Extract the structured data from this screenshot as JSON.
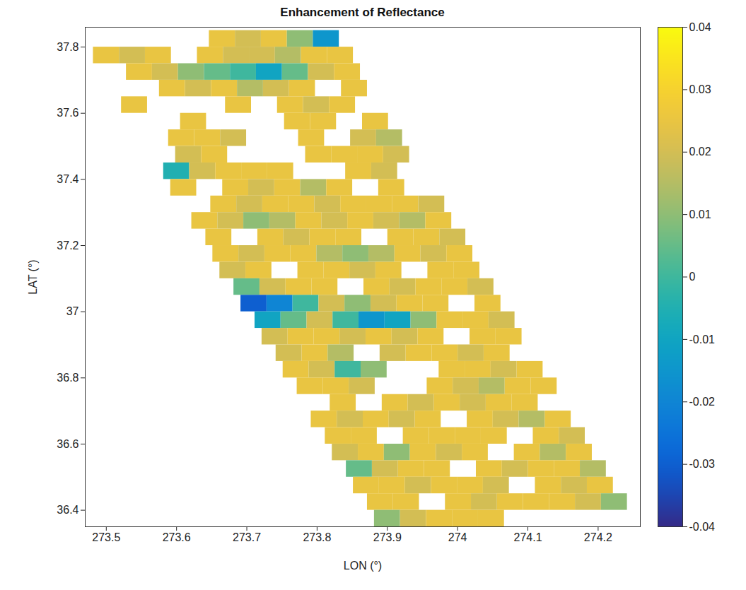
{
  "chart_data": {
    "type": "heatmap",
    "title": "Enhancement of Reflectance",
    "x_label": "LON (°)",
    "y_label": "LAT (°)",
    "xlim": [
      273.47,
      274.26
    ],
    "ylim": [
      36.35,
      37.86
    ],
    "xticks": [
      273.5,
      273.6,
      273.7,
      273.8,
      273.9,
      274,
      274.1,
      274.2
    ],
    "yticks": [
      36.4,
      36.6,
      36.8,
      37,
      37.2,
      37.4,
      37.6,
      37.8
    ],
    "cells": {
      "lat_step": 0.05,
      "lon_step": 0.037,
      "lat": [
        37.825,
        37.775,
        37.725,
        37.675,
        37.625,
        37.575,
        37.525,
        37.475,
        37.425,
        37.375,
        37.325,
        37.275,
        37.225,
        37.175,
        37.125,
        37.075,
        37.025,
        36.975,
        36.925,
        36.875,
        36.825,
        36.775,
        36.725,
        36.675,
        36.625,
        36.575,
        36.525,
        36.475,
        36.425,
        36.375
      ],
      "lon_start": [
        273.48,
        273.5,
        273.51,
        273.52,
        273.54,
        273.55,
        273.57,
        273.58,
        273.6,
        273.61,
        273.63,
        273.64,
        273.66,
        273.67,
        273.68,
        273.7,
        273.71,
        273.73,
        273.74,
        273.76,
        273.77,
        273.79,
        273.8,
        273.81,
        273.83,
        273.84,
        273.86,
        273.87,
        273.89,
        273.9
      ],
      "values": [
        [
          null,
          null,
          null,
          null,
          null,
          0.025,
          0.02,
          0.025,
          0.01,
          -0.015
        ],
        [
          0.025,
          0.02,
          0.025,
          null,
          0.025,
          0.02,
          0.02,
          0.015,
          0.025,
          0.025
        ],
        [
          null,
          0.025,
          0.02,
          0.01,
          0.005,
          0,
          -0.01,
          0.005,
          0.02,
          0.025
        ],
        [
          null,
          null,
          0.025,
          0.02,
          0.025,
          0.015,
          0.02,
          0.025,
          null,
          0.025
        ],
        [
          0.025,
          null,
          null,
          null,
          0.025,
          null,
          0.025,
          0.02,
          0.025,
          null
        ],
        [
          null,
          null,
          0.025,
          null,
          null,
          null,
          0.025,
          0.025,
          null,
          0.025
        ],
        [
          null,
          0.025,
          0.025,
          0.02,
          null,
          null,
          0.025,
          null,
          0.02,
          0.015
        ],
        [
          null,
          0.02,
          0.025,
          null,
          null,
          null,
          0.025,
          0.025,
          0.025,
          0.02
        ],
        [
          -0.005,
          0.02,
          0.025,
          0.025,
          0.025,
          null,
          null,
          0.025,
          0.02,
          null
        ],
        [
          0.025,
          null,
          0.025,
          0.02,
          0.025,
          0.015,
          0.025,
          null,
          0.025,
          null
        ],
        [
          null,
          0.025,
          0.02,
          0.025,
          0.025,
          0.02,
          0.025,
          0.025,
          0.025,
          0.02
        ],
        [
          0.025,
          0.02,
          0.01,
          0.015,
          0.025,
          0.02,
          0.025,
          0.02,
          0.015,
          0.025
        ],
        [
          0.025,
          null,
          0.025,
          0.02,
          0.025,
          0.025,
          null,
          0.025,
          0.025,
          0.02
        ],
        [
          0.025,
          0.02,
          0.025,
          0.025,
          0.015,
          0.01,
          0.015,
          0.025,
          0.02,
          0.025
        ],
        [
          0.02,
          0.025,
          null,
          0.025,
          0.025,
          0.02,
          0.025,
          null,
          0.025,
          0.025
        ],
        [
          0.005,
          0.02,
          0.025,
          0.025,
          null,
          0.025,
          0.02,
          0.025,
          0.025,
          0.02
        ],
        [
          -0.03,
          -0.02,
          0,
          0.02,
          0.01,
          0.02,
          0.025,
          0.025,
          null,
          0.025
        ],
        [
          -0.01,
          0.005,
          0.02,
          0,
          -0.015,
          -0.01,
          0.01,
          0.025,
          0.025,
          0.02
        ],
        [
          0.02,
          0.025,
          0.025,
          0.02,
          0.025,
          0.02,
          0.025,
          null,
          0.025,
          0.025
        ],
        [
          0.02,
          0.025,
          0.015,
          null,
          0.02,
          0.025,
          0.025,
          0.02,
          0.025,
          null
        ],
        [
          0.025,
          0.02,
          0,
          0.01,
          null,
          null,
          0.025,
          0.025,
          0.02,
          0.025
        ],
        [
          0.025,
          0.025,
          0.02,
          null,
          null,
          0.025,
          0.02,
          0.015,
          0.025,
          0.025
        ],
        [
          null,
          0.025,
          null,
          0.025,
          0.02,
          0.025,
          0.02,
          0.025,
          0.025,
          null
        ],
        [
          0.025,
          0.02,
          0.025,
          0.02,
          0.025,
          null,
          0.025,
          0.02,
          0.015,
          0.025
        ],
        [
          0.025,
          0.025,
          null,
          0.025,
          0.025,
          0.025,
          0.025,
          null,
          0.025,
          0.02
        ],
        [
          0.02,
          0.025,
          0.01,
          0.025,
          0.02,
          0.025,
          null,
          0.025,
          0.015,
          0.025
        ],
        [
          0.005,
          0.02,
          0.025,
          0.025,
          null,
          0.025,
          0.02,
          0.025,
          0.025,
          0.015
        ],
        [
          0.025,
          0.025,
          0.02,
          0.025,
          0.025,
          0.02,
          null,
          0.025,
          0.02,
          0.025
        ],
        [
          0.025,
          0.025,
          null,
          0.025,
          0.02,
          0.025,
          0.025,
          0.025,
          0.02,
          0.01
        ],
        [
          0.01,
          0.02,
          0.025,
          0.025,
          0.025,
          null,
          null,
          null,
          null,
          null
        ]
      ]
    },
    "colorbar": {
      "range": [
        -0.04,
        0.04
      ],
      "ticks": [
        -0.04,
        -0.03,
        -0.02,
        -0.01,
        0,
        0.01,
        0.02,
        0.03,
        0.04
      ]
    }
  }
}
